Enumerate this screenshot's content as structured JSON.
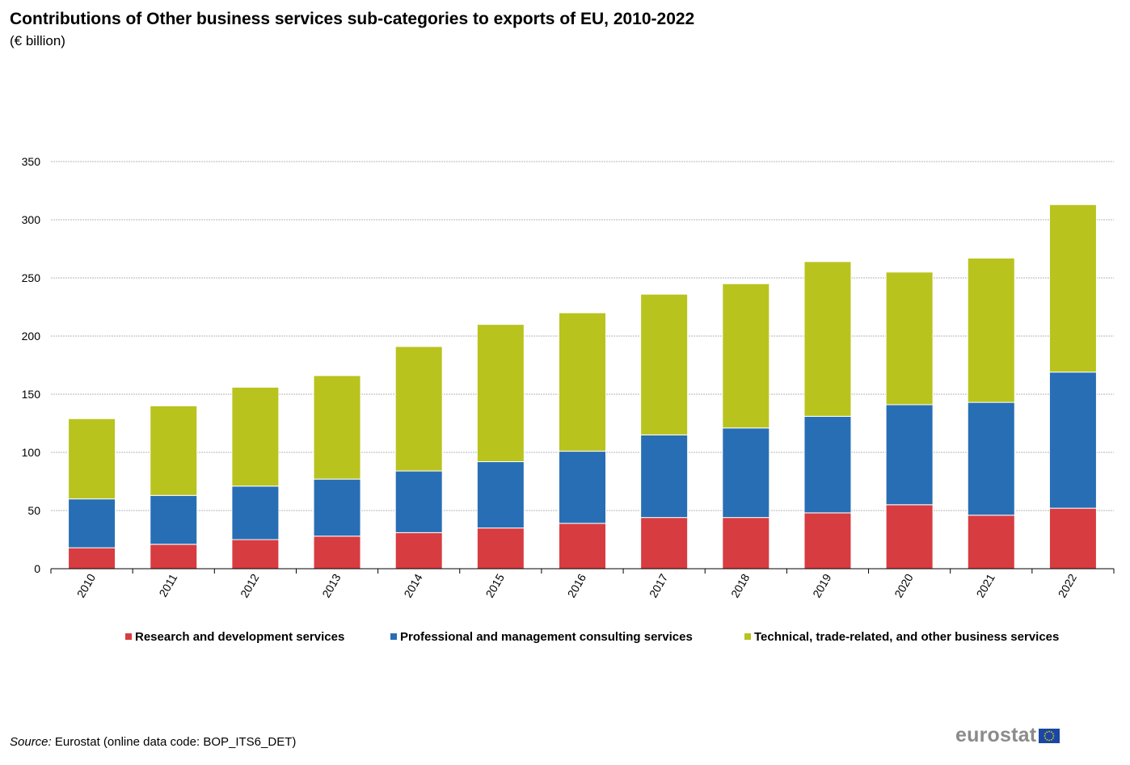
{
  "title": "Contributions of Other business services sub-categories to exports of EU, 2010-2022",
  "subtitle": "(€ billion)",
  "source_label": "Source:",
  "source_text": " Eurostat (online data code: BOP_ITS6_DET)",
  "logo_text": "eurostat",
  "logo_icon": "eu-flag-icon",
  "chart_data": {
    "type": "bar",
    "stacked": true,
    "categories": [
      "2010",
      "2011",
      "2012",
      "2013",
      "2014",
      "2015",
      "2016",
      "2017",
      "2018",
      "2019",
      "2020",
      "2021",
      "2022"
    ],
    "series": [
      {
        "name": "Research and development services",
        "color": "#d73c41",
        "values": [
          18,
          21,
          25,
          28,
          31,
          35,
          39,
          44,
          44,
          48,
          55,
          46,
          52
        ]
      },
      {
        "name": "Professional and management consulting services",
        "color": "#286eb4",
        "values": [
          42,
          42,
          46,
          49,
          53,
          57,
          62,
          71,
          77,
          83,
          86,
          97,
          117
        ]
      },
      {
        "name": "Technical, trade-related, and other business services",
        "color": "#b9c31e",
        "values": [
          69,
          77,
          85,
          89,
          107,
          118,
          119,
          121,
          124,
          133,
          114,
          124,
          144
        ]
      }
    ],
    "ylim": [
      0,
      350
    ],
    "yticks": [
      "0",
      "50",
      "100",
      "150",
      "200",
      "250",
      "300",
      "350"
    ],
    "grid": true,
    "legend_position": "bottom"
  }
}
